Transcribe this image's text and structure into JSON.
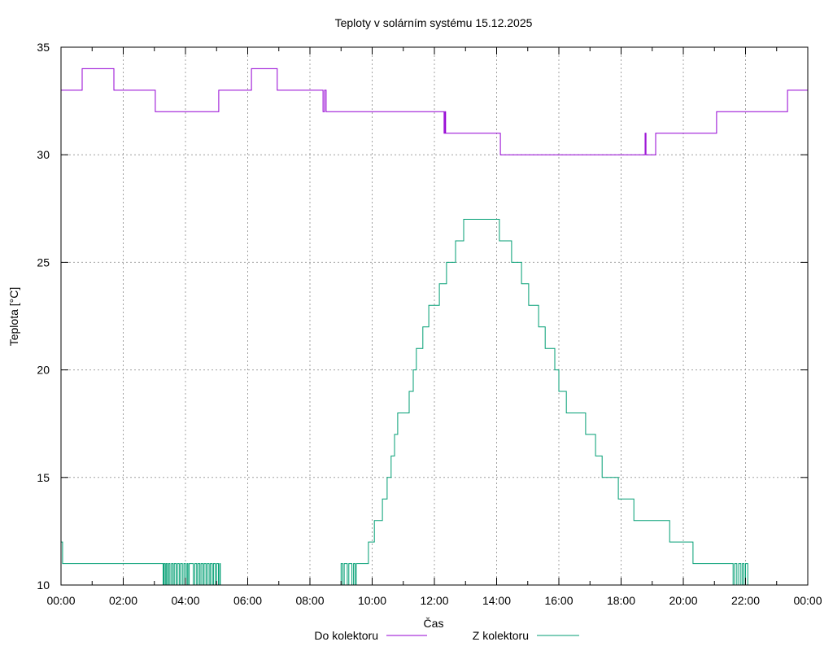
{
  "chart_data": {
    "type": "line",
    "title": "Teploty v solárním systému 15.12.2025",
    "xlabel": "Čas",
    "ylabel": "Teplota [°C]",
    "xlim": [
      0,
      24
    ],
    "ylim": [
      10,
      35
    ],
    "grid": true,
    "legend_position": "bottom",
    "x_ticks": [
      0,
      2,
      4,
      6,
      8,
      10,
      12,
      14,
      16,
      18,
      20,
      22,
      24
    ],
    "x_tick_labels": [
      "00:00",
      "02:00",
      "04:00",
      "06:00",
      "08:00",
      "10:00",
      "12:00",
      "14:00",
      "16:00",
      "18:00",
      "20:00",
      "22:00",
      "00:00"
    ],
    "y_ticks": [
      10,
      15,
      20,
      25,
      30,
      35
    ],
    "y_tick_labels": [
      "10",
      "15",
      "20",
      "25",
      "30",
      "35"
    ],
    "series": [
      {
        "name": "Do kolektoru",
        "color": "#9400d3",
        "points": [
          [
            0,
            33
          ],
          [
            0.68,
            34
          ],
          [
            1.7,
            33
          ],
          [
            3.03,
            32
          ],
          [
            5.07,
            33
          ],
          [
            6.12,
            34
          ],
          [
            6.95,
            33
          ],
          [
            8.42,
            32
          ],
          [
            8.47,
            33
          ],
          [
            8.52,
            32
          ],
          [
            12.31,
            31
          ],
          [
            12.34,
            32
          ],
          [
            12.36,
            31
          ],
          [
            14.12,
            30
          ],
          [
            18.77,
            31
          ],
          [
            18.8,
            30
          ],
          [
            19.11,
            31
          ],
          [
            21.07,
            32
          ],
          [
            23.35,
            33
          ],
          [
            24,
            33
          ]
        ]
      },
      {
        "name": "Z kolektoru",
        "color": "#009e73",
        "points": [
          [
            0,
            12
          ],
          [
            0.05,
            11
          ],
          [
            3.28,
            10
          ],
          [
            3.31,
            11
          ],
          [
            3.35,
            10
          ],
          [
            3.38,
            11
          ],
          [
            3.42,
            10
          ],
          [
            3.46,
            11
          ],
          [
            3.5,
            10
          ],
          [
            3.55,
            11
          ],
          [
            3.6,
            10
          ],
          [
            3.64,
            11
          ],
          [
            3.7,
            10
          ],
          [
            3.74,
            11
          ],
          [
            3.8,
            10
          ],
          [
            3.84,
            11
          ],
          [
            3.9,
            10
          ],
          [
            3.95,
            11
          ],
          [
            4.0,
            10
          ],
          [
            4.05,
            11
          ],
          [
            4.08,
            10
          ],
          [
            4.12,
            11
          ],
          [
            4.25,
            10
          ],
          [
            4.3,
            11
          ],
          [
            4.36,
            10
          ],
          [
            4.4,
            11
          ],
          [
            4.46,
            10
          ],
          [
            4.5,
            11
          ],
          [
            4.56,
            10
          ],
          [
            4.6,
            11
          ],
          [
            4.66,
            10
          ],
          [
            4.7,
            11
          ],
          [
            4.76,
            10
          ],
          [
            4.8,
            11
          ],
          [
            4.86,
            10
          ],
          [
            4.9,
            11
          ],
          [
            4.96,
            10
          ],
          [
            5.0,
            11
          ],
          [
            5.06,
            10
          ],
          [
            5.1,
            11
          ],
          [
            5.12,
            10
          ],
          [
            9.0,
            11
          ],
          [
            9.05,
            10
          ],
          [
            9.1,
            11
          ],
          [
            9.2,
            10
          ],
          [
            9.25,
            11
          ],
          [
            9.35,
            10
          ],
          [
            9.4,
            11
          ],
          [
            9.45,
            10
          ],
          [
            9.49,
            11
          ],
          [
            9.88,
            12
          ],
          [
            10.07,
            13
          ],
          [
            10.33,
            14
          ],
          [
            10.48,
            15
          ],
          [
            10.61,
            16
          ],
          [
            10.72,
            17
          ],
          [
            10.82,
            18
          ],
          [
            11.19,
            19
          ],
          [
            11.32,
            20
          ],
          [
            11.42,
            21
          ],
          [
            11.63,
            22
          ],
          [
            11.82,
            23
          ],
          [
            12.16,
            24
          ],
          [
            12.39,
            25
          ],
          [
            12.68,
            26
          ],
          [
            12.94,
            27
          ],
          [
            14.09,
            26
          ],
          [
            14.48,
            25
          ],
          [
            14.8,
            24
          ],
          [
            15.03,
            23
          ],
          [
            15.35,
            22
          ],
          [
            15.56,
            21
          ],
          [
            15.87,
            20
          ],
          [
            16.0,
            19
          ],
          [
            16.24,
            18
          ],
          [
            16.86,
            17
          ],
          [
            17.18,
            16
          ],
          [
            17.39,
            15
          ],
          [
            17.91,
            14
          ],
          [
            18.41,
            13
          ],
          [
            19.56,
            12
          ],
          [
            20.31,
            11
          ],
          [
            21.6,
            10
          ],
          [
            21.65,
            11
          ],
          [
            21.72,
            10
          ],
          [
            21.78,
            11
          ],
          [
            21.85,
            10
          ],
          [
            21.9,
            11
          ],
          [
            21.95,
            10
          ],
          [
            22.0,
            11
          ],
          [
            22.07,
            10
          ]
        ]
      }
    ]
  }
}
